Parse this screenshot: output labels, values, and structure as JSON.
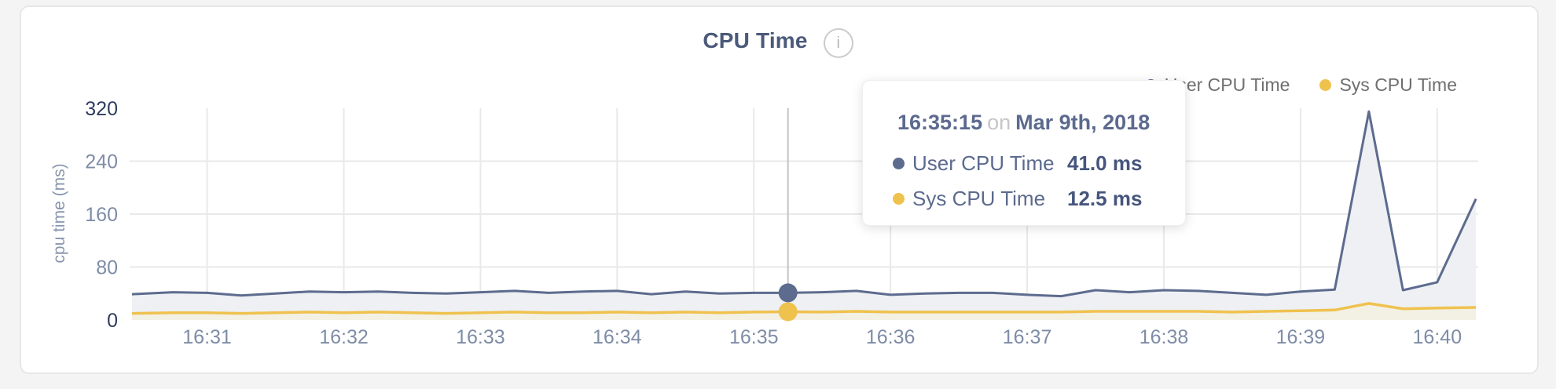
{
  "header": {
    "title": "CPU Time",
    "info_icon_glyph": "i"
  },
  "legend": {
    "items": [
      {
        "label": "User CPU Time",
        "color": "#5d6b8e"
      },
      {
        "label": "Sys CPU Time",
        "color": "#efc24e"
      }
    ]
  },
  "tooltip": {
    "time": "16:35:15",
    "connector": "on",
    "date": "Mar 9th, 2018",
    "rows": [
      {
        "label": "User CPU Time",
        "value": "41.0 ms",
        "color": "#5d6b8e"
      },
      {
        "label": "Sys CPU Time",
        "value": "12.5 ms",
        "color": "#efc24e"
      }
    ]
  },
  "colors": {
    "grid": "#e9e9e9",
    "axis_dark": "#2e3c5e",
    "axis_light": "#7e8ca6",
    "crosshair": "#c4c4c4",
    "card_border": "#e7e7e7",
    "page_bg": "#f4f4f5"
  },
  "chart_data": {
    "type": "area",
    "title": "CPU Time",
    "xlabel": "",
    "ylabel": "cpu time (ms)",
    "ylim": [
      0,
      320
    ],
    "x_domain_seconds": [
      26,
      618
    ],
    "grid": true,
    "legend_position": "top-right",
    "yticks": [
      {
        "v": 0,
        "label": "0",
        "emphasis": true
      },
      {
        "v": 80,
        "label": "80",
        "emphasis": false
      },
      {
        "v": 160,
        "label": "160",
        "emphasis": false
      },
      {
        "v": 240,
        "label": "240",
        "emphasis": false
      },
      {
        "v": 320,
        "label": "320",
        "emphasis": true
      }
    ],
    "xticks": [
      {
        "t": 60,
        "label": "16:31"
      },
      {
        "t": 120,
        "label": "16:32"
      },
      {
        "t": 180,
        "label": "16:33"
      },
      {
        "t": 240,
        "label": "16:34"
      },
      {
        "t": 300,
        "label": "16:35"
      },
      {
        "t": 360,
        "label": "16:36"
      },
      {
        "t": 420,
        "label": "16:37"
      },
      {
        "t": 480,
        "label": "16:38"
      },
      {
        "t": 540,
        "label": "16:39"
      },
      {
        "t": 600,
        "label": "16:40"
      }
    ],
    "hover": {
      "t": 315,
      "time": "16:35:15",
      "date": "Mar 9th, 2018",
      "values": [
        41.0,
        12.5
      ]
    },
    "series": [
      {
        "name": "User CPU Time",
        "unit": "ms",
        "color": "#5d6b8e",
        "fill": "#eef0f4",
        "stroke_width": 3,
        "points": [
          [
            27,
            39
          ],
          [
            45,
            42
          ],
          [
            60,
            41
          ],
          [
            75,
            37
          ],
          [
            90,
            40
          ],
          [
            105,
            43
          ],
          [
            120,
            42
          ],
          [
            135,
            43
          ],
          [
            150,
            41
          ],
          [
            165,
            40
          ],
          [
            180,
            42
          ],
          [
            195,
            44
          ],
          [
            210,
            41
          ],
          [
            225,
            43
          ],
          [
            240,
            44
          ],
          [
            255,
            39
          ],
          [
            270,
            43
          ],
          [
            285,
            40
          ],
          [
            300,
            41
          ],
          [
            315,
            41
          ],
          [
            330,
            42
          ],
          [
            345,
            44
          ],
          [
            360,
            38
          ],
          [
            375,
            40
          ],
          [
            390,
            41
          ],
          [
            405,
            41
          ],
          [
            420,
            38
          ],
          [
            435,
            36
          ],
          [
            450,
            45
          ],
          [
            465,
            42
          ],
          [
            480,
            45
          ],
          [
            495,
            44
          ],
          [
            510,
            41
          ],
          [
            525,
            38
          ],
          [
            540,
            43
          ],
          [
            555,
            46
          ],
          [
            570,
            315
          ],
          [
            585,
            45
          ],
          [
            600,
            57
          ],
          [
            617,
            183
          ]
        ]
      },
      {
        "name": "Sys CPU Time",
        "unit": "ms",
        "color": "#efc24e",
        "fill": "#f3f0e4",
        "stroke_width": 3.5,
        "points": [
          [
            27,
            10
          ],
          [
            45,
            11
          ],
          [
            60,
            11
          ],
          [
            75,
            10
          ],
          [
            90,
            11
          ],
          [
            105,
            12
          ],
          [
            120,
            11
          ],
          [
            135,
            12
          ],
          [
            150,
            11
          ],
          [
            165,
            10
          ],
          [
            180,
            11
          ],
          [
            195,
            12
          ],
          [
            210,
            11
          ],
          [
            225,
            11
          ],
          [
            240,
            12
          ],
          [
            255,
            11
          ],
          [
            270,
            12
          ],
          [
            285,
            11
          ],
          [
            300,
            12
          ],
          [
            315,
            12.5
          ],
          [
            330,
            12
          ],
          [
            345,
            13
          ],
          [
            360,
            12
          ],
          [
            375,
            12
          ],
          [
            390,
            12
          ],
          [
            405,
            12
          ],
          [
            420,
            12
          ],
          [
            435,
            12
          ],
          [
            450,
            13
          ],
          [
            465,
            13
          ],
          [
            480,
            13
          ],
          [
            495,
            13
          ],
          [
            510,
            12
          ],
          [
            525,
            13
          ],
          [
            540,
            14
          ],
          [
            555,
            15
          ],
          [
            570,
            25
          ],
          [
            585,
            17
          ],
          [
            600,
            18
          ],
          [
            617,
            19
          ]
        ]
      }
    ]
  }
}
